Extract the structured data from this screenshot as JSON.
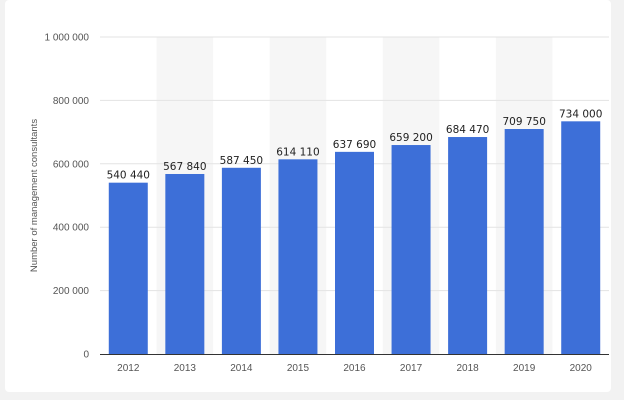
{
  "chart_data": {
    "type": "bar",
    "title": "",
    "xlabel": "",
    "ylabel": "Number of management consultants",
    "categories": [
      "2012",
      "2013",
      "2014",
      "2015",
      "2016",
      "2017",
      "2018",
      "2019",
      "2020"
    ],
    "values": [
      540440,
      567840,
      587450,
      614110,
      637690,
      659200,
      684470,
      709750,
      734000
    ],
    "value_labels": [
      "540 440",
      "567 840",
      "587 450",
      "614 110",
      "637 690",
      "659 200",
      "684 470",
      "709 750",
      "734 000"
    ],
    "ylim": [
      0,
      1000000
    ],
    "yticks": [
      0,
      200000,
      400000,
      600000,
      800000,
      1000000
    ],
    "ytick_labels": [
      "0",
      "200 000",
      "400 000",
      "600 000",
      "800 000",
      "1 000 000"
    ],
    "grid": true,
    "colors": {
      "bar": "#3d6fd8",
      "band": "#f6f6f6",
      "grid": "#e3e3e3",
      "axis": "#333333"
    }
  }
}
